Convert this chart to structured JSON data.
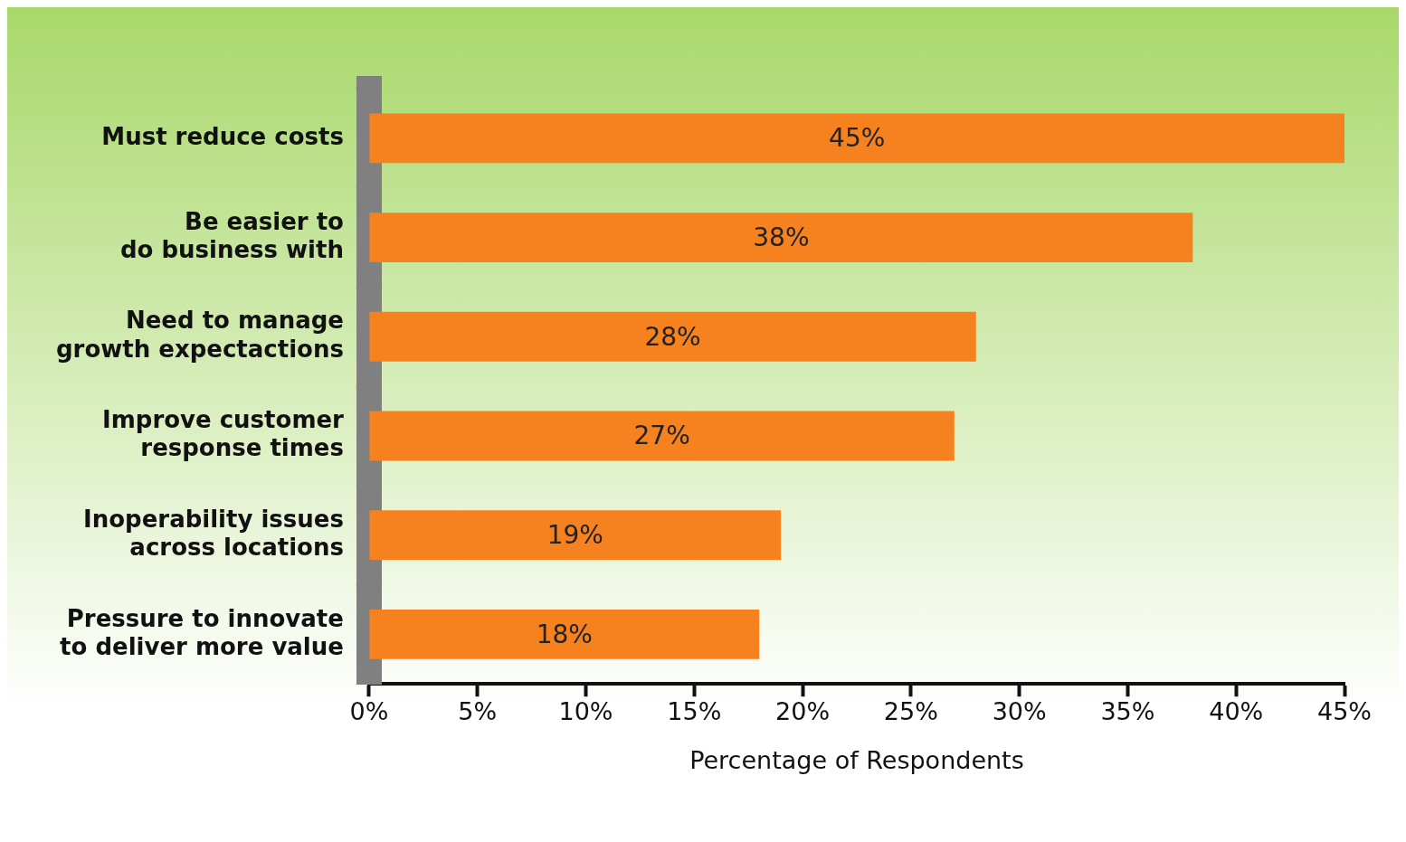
{
  "chart_data": {
    "type": "bar",
    "orientation": "horizontal",
    "categories": [
      "Must reduce costs",
      "Be easier to\ndo business with",
      "Need to manage\ngrowth expectactions",
      "Improve customer\nresponse times",
      "Inoperability issues\nacross locations",
      "Pressure to innovate\nto deliver more value"
    ],
    "values": [
      45,
      38,
      28,
      27,
      19,
      18
    ],
    "value_labels": [
      "45%",
      "38%",
      "28%",
      "27%",
      "19%",
      "18%"
    ],
    "color": "#f5821f",
    "xlabel": "Percentage of Respondents",
    "xlim": [
      0,
      45
    ],
    "xticks": [
      {
        "value": 0,
        "label": "0%"
      },
      {
        "value": 5,
        "label": "5%"
      },
      {
        "value": 10,
        "label": "10%"
      },
      {
        "value": 15,
        "label": "15%"
      },
      {
        "value": 20,
        "label": "20%"
      },
      {
        "value": 25,
        "label": "25%"
      },
      {
        "value": 30,
        "label": "30%"
      },
      {
        "value": 35,
        "label": "35%"
      },
      {
        "value": 40,
        "label": "40%"
      },
      {
        "value": 45,
        "label": "45%"
      }
    ],
    "grid": false,
    "legend": false
  }
}
